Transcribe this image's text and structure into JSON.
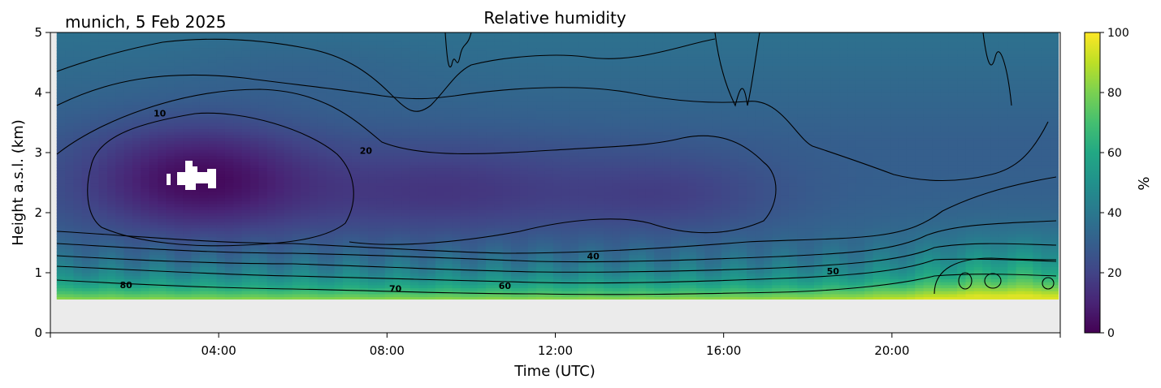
{
  "chart_data": {
    "type": "heatmap",
    "title": "Relative humidity",
    "location_date": "munich, 5 Feb 2025",
    "xlabel": "Time (UTC)",
    "ylabel": "Height a.s.l. (km)",
    "xlim": [
      0,
      24
    ],
    "ylim": [
      0,
      5
    ],
    "x_ticks": [
      "04:00",
      "08:00",
      "12:00",
      "16:00",
      "20:00"
    ],
    "x_tick_values": [
      4,
      8,
      12,
      16,
      20
    ],
    "y_ticks": [
      "0",
      "1",
      "2",
      "3",
      "4",
      "5"
    ],
    "y_tick_values": [
      0,
      1,
      2,
      3,
      4,
      5
    ],
    "colorbar": {
      "label": "%",
      "range": [
        0,
        100
      ],
      "ticks": [
        "0",
        "20",
        "40",
        "60",
        "80",
        "100"
      ],
      "tick_values": [
        0,
        20,
        40,
        60,
        80,
        100
      ],
      "colormap": "viridis"
    },
    "data_bottom_km": 0.55,
    "contour_labels": [
      {
        "text": "10",
        "x": 2.6,
        "y": 3.6
      },
      {
        "text": "20",
        "x": 7.5,
        "y": 2.98
      },
      {
        "text": "40",
        "x": 12.9,
        "y": 1.22
      },
      {
        "text": "50",
        "x": 18.6,
        "y": 0.97
      },
      {
        "text": "60",
        "x": 10.8,
        "y": 0.73
      },
      {
        "text": "70",
        "x": 8.2,
        "y": 0.68
      },
      {
        "text": "80",
        "x": 1.8,
        "y": 0.74
      }
    ],
    "colors": {
      "no_data": "#ebebeb",
      "contour": "#000000"
    }
  }
}
